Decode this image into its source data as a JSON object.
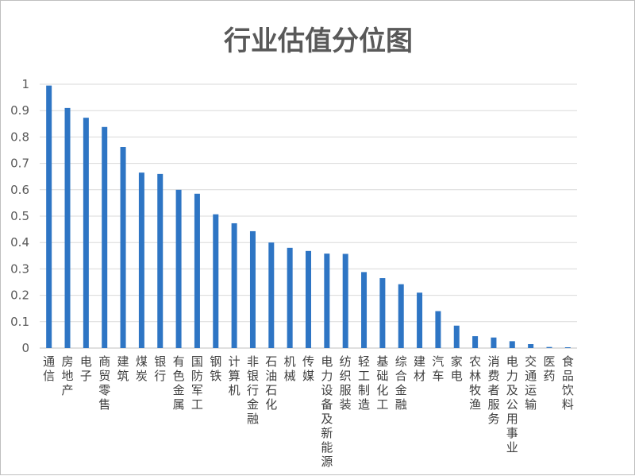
{
  "chart_data": {
    "type": "bar",
    "title": "行业估值分位图",
    "xlabel": "",
    "ylabel": "",
    "ylim": [
      0,
      1
    ],
    "yticks": [
      "0",
      "0.1",
      "0.2",
      "0.3",
      "0.4",
      "0.5",
      "0.6",
      "0.7",
      "0.8",
      "0.9",
      "1"
    ],
    "grid": true,
    "legend": "none",
    "bar_color": "#2e75c4",
    "categories": [
      "通信",
      "房地产",
      "电子",
      "商贸零售",
      "建筑",
      "煤炭",
      "银行",
      "有色金属",
      "国防军工",
      "钢铁",
      "计算机",
      "非银行金融",
      "石油石化",
      "机械",
      "传媒",
      "电力设备及新能源",
      "纺织服装",
      "轻工制造",
      "基础化工",
      "综合金融",
      "建材",
      "汽车",
      "家电",
      "农林牧渔",
      "消费者服务",
      "电力及公用事业",
      "交通运输",
      "医药",
      "食品饮料"
    ],
    "values": [
      0.995,
      0.91,
      0.873,
      0.838,
      0.762,
      0.665,
      0.66,
      0.6,
      0.585,
      0.507,
      0.473,
      0.443,
      0.4,
      0.38,
      0.368,
      0.358,
      0.357,
      0.288,
      0.265,
      0.242,
      0.21,
      0.14,
      0.085,
      0.045,
      0.04,
      0.026,
      0.015,
      0.004,
      0.003
    ]
  }
}
